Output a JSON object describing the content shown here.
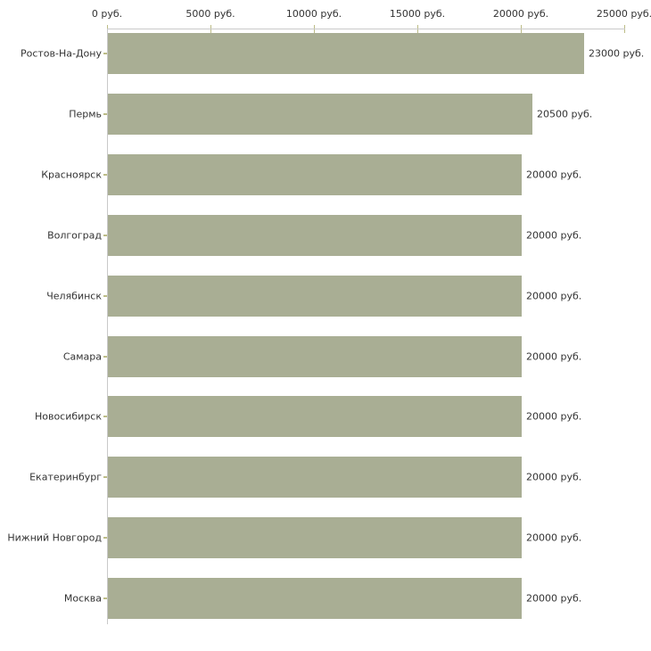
{
  "chart_data": {
    "type": "bar",
    "orientation": "horizontal",
    "unit": "руб.",
    "categories": [
      "Ростов-На-Дону",
      "Пермь",
      "Красноярск",
      "Волгоград",
      "Челябинск",
      "Самара",
      "Новосибирск",
      "Екатеринбург",
      "Нижний Новгород",
      "Москва"
    ],
    "values": [
      23000,
      20500,
      20000,
      20000,
      20000,
      20000,
      20000,
      20000,
      20000,
      20000
    ],
    "value_labels": [
      "23000 руб.",
      "20500 руб.",
      "20000 руб.",
      "20000 руб.",
      "20000 руб.",
      "20000 руб.",
      "20000 руб.",
      "20000 руб.",
      "20000 руб.",
      "20000 руб."
    ],
    "x_ticks": [
      0,
      5000,
      10000,
      15000,
      20000,
      25000
    ],
    "x_tick_labels": [
      "0 руб.",
      "5000 руб.",
      "10000 руб.",
      "15000 руб.",
      "20000 руб.",
      "25000 руб."
    ],
    "xlim": [
      0,
      25000
    ],
    "grid": false,
    "legend": false,
    "bar_color": "#a9ae94",
    "axis_color": "#c9c9c9",
    "tick_color": "#bcbc86",
    "text_color": "#333333",
    "background": "#ffffff"
  }
}
